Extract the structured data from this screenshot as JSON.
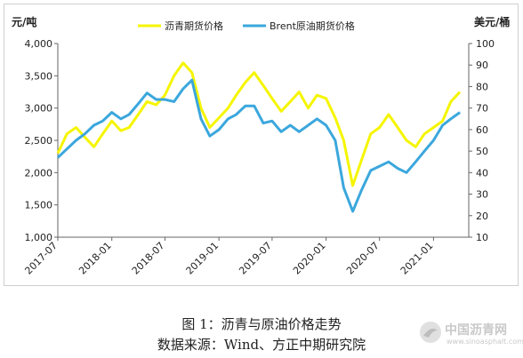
{
  "chart_data": {
    "type": "line",
    "left_axis_label": "元/吨",
    "right_axis_label": "美元/桶",
    "y_left": {
      "min": 1000,
      "max": 4000,
      "ticks": [
        "1,000",
        "1,500",
        "2,000",
        "2,500",
        "3,000",
        "3,500",
        "4,000"
      ]
    },
    "y_right": {
      "min": 10,
      "max": 100,
      "ticks": [
        "10",
        "20",
        "30",
        "40",
        "50",
        "60",
        "70",
        "80",
        "90",
        "100"
      ]
    },
    "x_range": [
      "2017-07-01",
      "2021-05-01"
    ],
    "x_ticks": [
      "2017-07",
      "2018-01",
      "2018-07",
      "2019-01",
      "2019-07",
      "2020-01",
      "2020-07",
      "2021-01"
    ],
    "grid": false,
    "legend_position": "top-center",
    "series": [
      {
        "name": "沥青期货价格",
        "axis": "left",
        "color": "#f5f500",
        "points": [
          [
            "2017-07-01",
            2300
          ],
          [
            "2017-08-01",
            2600
          ],
          [
            "2017-09-01",
            2700
          ],
          [
            "2017-10-01",
            2550
          ],
          [
            "2017-11-01",
            2400
          ],
          [
            "2017-12-01",
            2600
          ],
          [
            "2018-01-01",
            2800
          ],
          [
            "2018-02-01",
            2650
          ],
          [
            "2018-03-01",
            2700
          ],
          [
            "2018-04-01",
            2900
          ],
          [
            "2018-05-01",
            3100
          ],
          [
            "2018-06-01",
            3050
          ],
          [
            "2018-07-01",
            3200
          ],
          [
            "2018-08-01",
            3500
          ],
          [
            "2018-09-01",
            3700
          ],
          [
            "2018-10-01",
            3550
          ],
          [
            "2018-11-01",
            3000
          ],
          [
            "2018-12-01",
            2700
          ],
          [
            "2019-01-01",
            2850
          ],
          [
            "2019-02-01",
            3000
          ],
          [
            "2019-03-01",
            3200
          ],
          [
            "2019-04-01",
            3400
          ],
          [
            "2019-05-01",
            3550
          ],
          [
            "2019-06-01",
            3350
          ],
          [
            "2019-07-01",
            3150
          ],
          [
            "2019-08-01",
            2950
          ],
          [
            "2019-09-01",
            3100
          ],
          [
            "2019-10-01",
            3250
          ],
          [
            "2019-11-01",
            3000
          ],
          [
            "2019-12-01",
            3200
          ],
          [
            "2020-01-01",
            3150
          ],
          [
            "2020-02-01",
            2850
          ],
          [
            "2020-03-01",
            2500
          ],
          [
            "2020-04-01",
            1800
          ],
          [
            "2020-05-01",
            2200
          ],
          [
            "2020-06-01",
            2600
          ],
          [
            "2020-07-01",
            2700
          ],
          [
            "2020-08-01",
            2900
          ],
          [
            "2020-09-01",
            2700
          ],
          [
            "2020-10-01",
            2500
          ],
          [
            "2020-11-01",
            2400
          ],
          [
            "2020-12-01",
            2600
          ],
          [
            "2021-01-01",
            2700
          ],
          [
            "2021-02-01",
            2800
          ],
          [
            "2021-03-01",
            3100
          ],
          [
            "2021-04-01",
            3250
          ]
        ]
      },
      {
        "name": "Brent原油期货价格",
        "axis": "right",
        "color": "#3ba7dd",
        "points": [
          [
            "2017-07-01",
            47
          ],
          [
            "2017-08-01",
            51
          ],
          [
            "2017-09-01",
            55
          ],
          [
            "2017-10-01",
            58
          ],
          [
            "2017-11-01",
            62
          ],
          [
            "2017-12-01",
            64
          ],
          [
            "2018-01-01",
            68
          ],
          [
            "2018-02-01",
            65
          ],
          [
            "2018-03-01",
            67
          ],
          [
            "2018-04-01",
            72
          ],
          [
            "2018-05-01",
            77
          ],
          [
            "2018-06-01",
            74
          ],
          [
            "2018-07-01",
            74
          ],
          [
            "2018-08-01",
            73
          ],
          [
            "2018-09-01",
            79
          ],
          [
            "2018-10-01",
            83
          ],
          [
            "2018-11-01",
            65
          ],
          [
            "2018-12-01",
            57
          ],
          [
            "2019-01-01",
            60
          ],
          [
            "2019-02-01",
            65
          ],
          [
            "2019-03-01",
            67
          ],
          [
            "2019-04-01",
            71
          ],
          [
            "2019-05-01",
            71
          ],
          [
            "2019-06-01",
            63
          ],
          [
            "2019-07-01",
            64
          ],
          [
            "2019-08-01",
            59
          ],
          [
            "2019-09-01",
            62
          ],
          [
            "2019-10-01",
            59
          ],
          [
            "2019-11-01",
            62
          ],
          [
            "2019-12-01",
            65
          ],
          [
            "2020-01-01",
            62
          ],
          [
            "2020-02-01",
            55
          ],
          [
            "2020-03-01",
            33
          ],
          [
            "2020-04-01",
            22
          ],
          [
            "2020-05-01",
            32
          ],
          [
            "2020-06-01",
            41
          ],
          [
            "2020-07-01",
            43
          ],
          [
            "2020-08-01",
            45
          ],
          [
            "2020-09-01",
            42
          ],
          [
            "2020-10-01",
            40
          ],
          [
            "2020-11-01",
            45
          ],
          [
            "2020-12-01",
            50
          ],
          [
            "2021-01-01",
            55
          ],
          [
            "2021-02-01",
            62
          ],
          [
            "2021-03-01",
            65
          ],
          [
            "2021-04-01",
            68
          ]
        ]
      }
    ]
  },
  "caption": {
    "line1": "图 1：沥青与原油价格走势",
    "line2": "数据来源：Wind、方正中期研究院"
  },
  "watermark": {
    "name": "中国沥青网",
    "url": "www.sinoasphalt.com"
  }
}
